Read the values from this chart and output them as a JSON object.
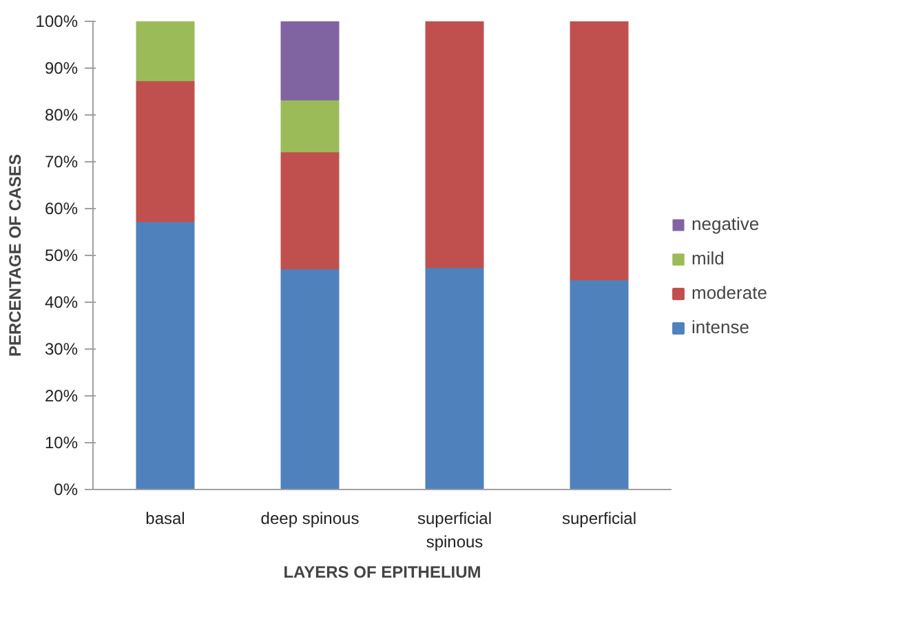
{
  "chart_data": {
    "type": "bar",
    "stacked": true,
    "xlabel": "LAYERS OF EPITHELIUM",
    "ylabel": "PERCENTAGE OF CASES",
    "categories": [
      "basal",
      "deep spinous",
      "superficial\nspinous",
      "superficial"
    ],
    "series": [
      {
        "name": "intense",
        "color": "#4f81bd",
        "values": [
          57.2,
          47.1,
          47.4,
          44.8
        ]
      },
      {
        "name": "moderate",
        "color": "#c0504d",
        "values": [
          30.1,
          25.0,
          52.6,
          55.2
        ]
      },
      {
        "name": "mild",
        "color": "#9bbb59",
        "values": [
          12.7,
          11.1,
          null,
          null
        ]
      },
      {
        "name": "negative",
        "color": "#8064a2",
        "values": [
          null,
          16.8,
          null,
          null
        ]
      }
    ],
    "ylim": [
      0,
      100
    ],
    "yticks": [
      {
        "value": 0,
        "label": "0%"
      },
      {
        "value": 10,
        "label": "10%"
      },
      {
        "value": 20,
        "label": "20%"
      },
      {
        "value": 30,
        "label": "30%"
      },
      {
        "value": 40,
        "label": "40%"
      },
      {
        "value": 50,
        "label": "50%"
      },
      {
        "value": 60,
        "label": "60%"
      },
      {
        "value": 70,
        "label": "70%"
      },
      {
        "value": 80,
        "label": "80%"
      },
      {
        "value": 90,
        "label": "90%"
      },
      {
        "value": 100,
        "label": "100%"
      }
    ],
    "grid": false,
    "legend": "right"
  }
}
